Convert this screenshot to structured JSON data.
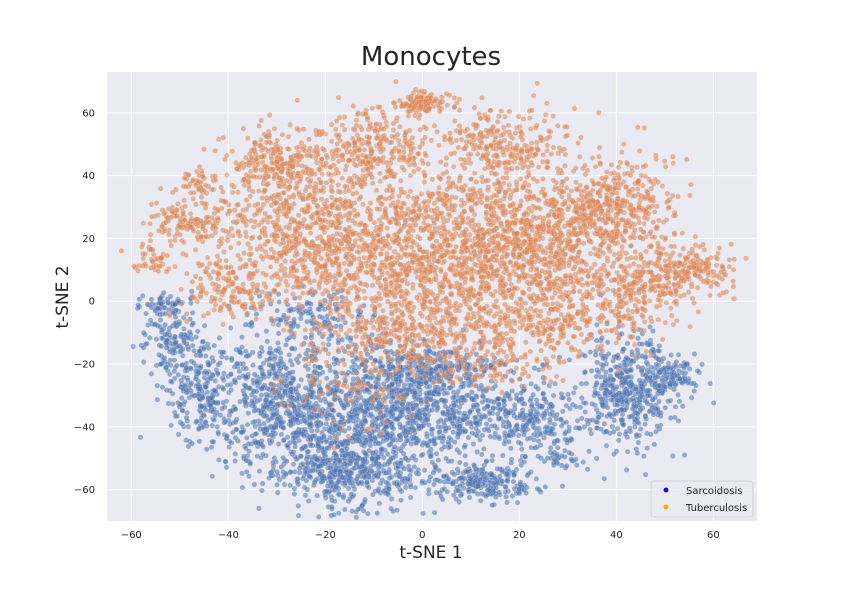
{
  "chart_data": {
    "type": "scatter",
    "title": "Monocytes",
    "xlabel": "t-SNE 1",
    "ylabel": "t-SNE 2",
    "xlim": [
      -65,
      69
    ],
    "ylim": [
      -70,
      73
    ],
    "xticks": [
      -60,
      -40,
      -20,
      0,
      20,
      40,
      60
    ],
    "yticks": [
      -60,
      -40,
      -20,
      0,
      20,
      40,
      60
    ],
    "xtick_labels": [
      "−60",
      "−40",
      "−20",
      "0",
      "20",
      "40",
      "60"
    ],
    "ytick_labels": [
      "−60",
      "−40",
      "−20",
      "0",
      "20",
      "40",
      "60"
    ],
    "grid": true,
    "legend_position": "lower-right",
    "background_color": "#eaeaf2",
    "series": [
      {
        "name": "Sarcoidosis",
        "color": "#4c72b0",
        "legend_color": "#0000ff",
        "clusters": [
          {
            "cx": -15,
            "cy": -38,
            "sx": 11,
            "sy": 13,
            "n": 900
          },
          {
            "cx": -30,
            "cy": -32,
            "sx": 5,
            "sy": 12,
            "n": 400
          },
          {
            "cx": -5,
            "cy": -30,
            "sx": 7,
            "sy": 8,
            "n": 350
          },
          {
            "cx": -15,
            "cy": -55,
            "sx": 7,
            "sy": 5,
            "n": 300
          },
          {
            "cx": 12,
            "cy": -58,
            "sx": 6,
            "sy": 3,
            "n": 220
          },
          {
            "cx": 8,
            "cy": -35,
            "sx": 6,
            "sy": 7,
            "n": 250
          },
          {
            "cx": 23,
            "cy": -38,
            "sx": 5,
            "sy": 6,
            "n": 250
          },
          {
            "cx": 42,
            "cy": -28,
            "sx": 5,
            "sy": 9,
            "n": 450
          },
          {
            "cx": 52,
            "cy": -24,
            "sx": 3,
            "sy": 3,
            "n": 100
          },
          {
            "cx": -46,
            "cy": -28,
            "sx": 4,
            "sy": 8,
            "n": 250
          },
          {
            "cx": -52,
            "cy": -12,
            "sx": 3,
            "sy": 4,
            "n": 100
          },
          {
            "cx": -53,
            "cy": -1,
            "sx": 2.5,
            "sy": 2,
            "n": 60
          },
          {
            "cx": 4,
            "cy": -20,
            "sx": 8,
            "sy": 3,
            "n": 150
          },
          {
            "cx": 28,
            "cy": -50,
            "sx": 2,
            "sy": 1.5,
            "n": 30
          },
          {
            "cx": -22,
            "cy": -5,
            "sx": 6,
            "sy": 4,
            "n": 120
          }
        ]
      },
      {
        "name": "Tuberculosis",
        "color": "#dd8452",
        "legend_color": "#ffa500",
        "clusters": [
          {
            "cx": 0,
            "cy": 15,
            "sx": 14,
            "sy": 13,
            "n": 1300
          },
          {
            "cx": 25,
            "cy": 20,
            "sx": 11,
            "sy": 12,
            "n": 900
          },
          {
            "cx": -25,
            "cy": 25,
            "sx": 9,
            "sy": 12,
            "n": 600
          },
          {
            "cx": -30,
            "cy": 45,
            "sx": 5,
            "sy": 5,
            "n": 200
          },
          {
            "cx": -10,
            "cy": 50,
            "sx": 6,
            "sy": 6,
            "n": 250
          },
          {
            "cx": 15,
            "cy": 50,
            "sx": 7,
            "sy": 6,
            "n": 250
          },
          {
            "cx": 0,
            "cy": 63,
            "sx": 3,
            "sy": 1.8,
            "n": 120
          },
          {
            "cx": 40,
            "cy": 30,
            "sx": 6,
            "sy": 8,
            "n": 300
          },
          {
            "cx": 55,
            "cy": 10,
            "sx": 4,
            "sy": 4.5,
            "n": 200
          },
          {
            "cx": -48,
            "cy": 25,
            "sx": 5,
            "sy": 4,
            "n": 150
          },
          {
            "cx": -46,
            "cy": 38,
            "sx": 2,
            "sy": 2,
            "n": 40
          },
          {
            "cx": -55,
            "cy": 13,
            "sx": 2,
            "sy": 2,
            "n": 40
          },
          {
            "cx": 0,
            "cy": -10,
            "sx": 10,
            "sy": 6,
            "n": 300
          },
          {
            "cx": 30,
            "cy": -5,
            "sx": 10,
            "sy": 6,
            "n": 300
          },
          {
            "cx": -40,
            "cy": 5,
            "sx": 5,
            "sy": 5,
            "n": 150
          },
          {
            "cx": 45,
            "cy": 5,
            "sx": 5,
            "sy": 5,
            "n": 150
          },
          {
            "cx": -15,
            "cy": -25,
            "sx": 8,
            "sy": 8,
            "n": 100
          },
          {
            "cx": 15,
            "cy": -20,
            "sx": 8,
            "sy": 4,
            "n": 100
          }
        ]
      }
    ]
  }
}
